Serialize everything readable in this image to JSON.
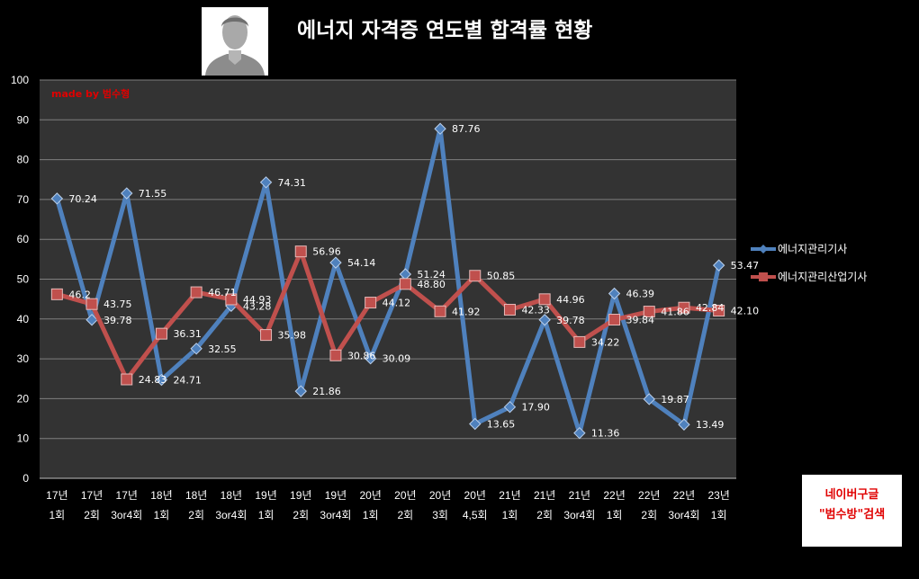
{
  "title": "에너지 자격증 연도별 합격률 현황",
  "watermark": "made by  범수형",
  "search_note": {
    "line1": "네이버구글",
    "line2": "\"범수방\"검색"
  },
  "colors": {
    "series1": "#4f81bd",
    "series2": "#c0504d",
    "plot_bg": "#333333",
    "grid": "#7f7f7f"
  },
  "icons": {
    "avatar": "person-silhouette-icon"
  },
  "chart_data": {
    "type": "line",
    "title": "에너지 자격증 연도별 합격률 현황",
    "xlabel": "",
    "ylabel": "",
    "ylim": [
      0,
      100
    ],
    "yticks": [
      0,
      10,
      20,
      30,
      40,
      50,
      60,
      70,
      80,
      90,
      100
    ],
    "grid": true,
    "legend_position": "right",
    "categories": [
      [
        "17년",
        "1회"
      ],
      [
        "17년",
        "2회"
      ],
      [
        "17년",
        "3or4회"
      ],
      [
        "18년",
        "1회"
      ],
      [
        "18년",
        "2회"
      ],
      [
        "18년",
        "3or4회"
      ],
      [
        "19년",
        "1회"
      ],
      [
        "19년",
        "2회"
      ],
      [
        "19년",
        "3or4회"
      ],
      [
        "20년",
        "1회"
      ],
      [
        "20년",
        "2회"
      ],
      [
        "20년",
        "3회"
      ],
      [
        "20년",
        "4,5회"
      ],
      [
        "21년",
        "1회"
      ],
      [
        "21년",
        "2회"
      ],
      [
        "21년",
        "3or4회"
      ],
      [
        "22년",
        "1회"
      ],
      [
        "22년",
        "2회"
      ],
      [
        "22년",
        "3or4회"
      ],
      [
        "23년",
        "1회"
      ]
    ],
    "series": [
      {
        "name": "에너지관리기사",
        "values": [
          70.24,
          39.78,
          71.55,
          24.71,
          32.55,
          43.28,
          74.31,
          21.86,
          54.14,
          30.09,
          51.24,
          87.76,
          13.65,
          17.9,
          39.78,
          11.36,
          46.39,
          19.87,
          13.49,
          53.47
        ],
        "labels": [
          "70.24",
          "39.78",
          "71.55",
          "24.71",
          "32.55",
          "43.28",
          "74.31",
          "21.86",
          "54.14",
          "30.09",
          "51.24",
          "87.76",
          "13.65",
          "17.90",
          "39.78",
          "11.36",
          "46.39",
          "19.87",
          "13.49",
          "53.47"
        ]
      },
      {
        "name": "에너지관리산업기사",
        "values": [
          46.2,
          43.75,
          24.83,
          36.31,
          46.71,
          44.93,
          35.98,
          56.96,
          30.86,
          44.12,
          48.8,
          41.92,
          50.85,
          42.33,
          44.96,
          34.22,
          39.84,
          41.86,
          42.84,
          42.1
        ],
        "labels": [
          "46.2",
          "43.75",
          "24.83",
          "36.31",
          "46.71",
          "44.93",
          "35.98",
          "56.96",
          "30.86",
          "44.12",
          "48.80",
          "41.92",
          "50.85",
          "42.33",
          "44.96",
          "34.22",
          "39.84",
          "41.86",
          "42.84",
          "42.10"
        ]
      }
    ]
  }
}
